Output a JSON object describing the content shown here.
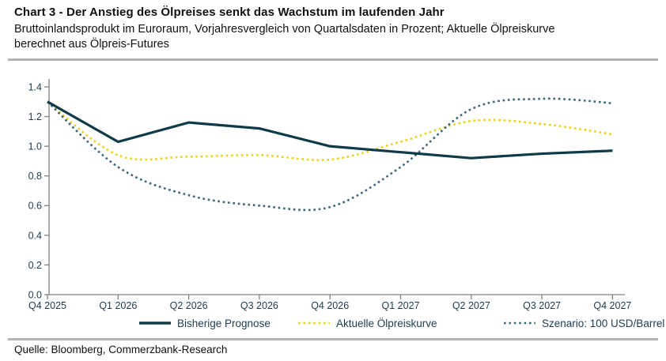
{
  "footer": {
    "source": "Quelle: Bloomberg, Commerzbank-Research"
  },
  "chart_data": {
    "type": "line",
    "title": "Chart 3 - Der Anstieg des Ölpreises senkt das Wachstum im laufenden Jahr",
    "subtitle": "Bruttoinlandsprodukt im Euroraum, Vorjahresvergleich von Quartalsdaten in Prozent; Aktuelle Ölpreiskurve berechnet aus Ölpreis-Futures",
    "xlabel": "",
    "ylabel": "",
    "categories": [
      "Q4 2025",
      "Q1 2026",
      "Q2 2026",
      "Q3 2026",
      "Q4 2026",
      "Q1 2027",
      "Q2 2027",
      "Q3 2027",
      "Q4 2027"
    ],
    "series": [
      {
        "name": "Bisherige Prognose",
        "style": "solid",
        "color": "#0f3a48",
        "values": [
          1.3,
          1.03,
          1.16,
          1.12,
          1.0,
          0.96,
          0.92,
          0.95,
          0.97
        ]
      },
      {
        "name": "Aktuelle Ölpreiskurve",
        "style": "dotted",
        "color": "#edd117",
        "values": [
          1.3,
          0.94,
          0.93,
          0.94,
          0.91,
          1.03,
          1.17,
          1.15,
          1.08
        ]
      },
      {
        "name": "Szenario: 100 USD/Barrel",
        "style": "dotted",
        "color": "#3b6578",
        "values": [
          1.3,
          0.86,
          0.67,
          0.6,
          0.59,
          0.86,
          1.25,
          1.32,
          1.29
        ]
      }
    ],
    "ylim": [
      0,
      1.4
    ],
    "ytick_step": 0.2,
    "yticks": [
      "0.0",
      "0.2",
      "0.4",
      "0.6",
      "0.8",
      "1.0",
      "1.2",
      "1.4"
    ],
    "grid": false,
    "legend_position": "bottom",
    "axis_color": "#808080"
  }
}
